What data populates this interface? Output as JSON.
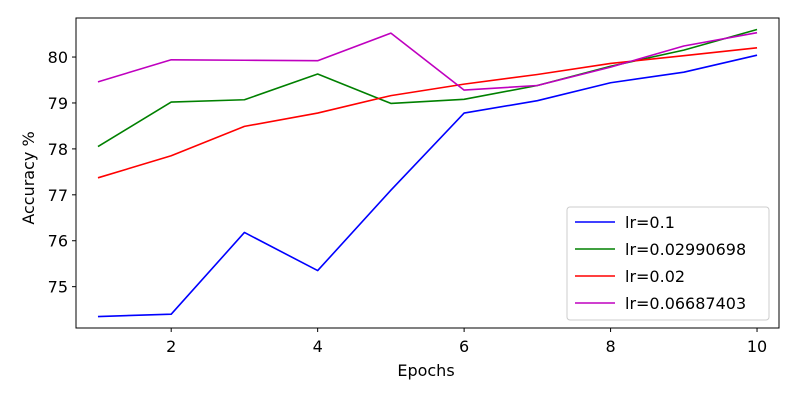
{
  "chart_data": {
    "type": "line",
    "title": "",
    "xlabel": "Epochs",
    "ylabel": "Accuracy %",
    "x": [
      1,
      2,
      3,
      4,
      5,
      6,
      7,
      8,
      9,
      10
    ],
    "xlim": [
      0.7,
      10.3
    ],
    "ylim": [
      74.1,
      80.85
    ],
    "xticks": [
      2,
      4,
      6,
      8,
      10
    ],
    "yticks": [
      75,
      76,
      77,
      78,
      79,
      80
    ],
    "grid": false,
    "legend_position": "lower-right",
    "series": [
      {
        "name": "lr=0.1",
        "color": "#0000ff",
        "values": [
          74.35,
          74.4,
          76.18,
          75.35,
          77.1,
          78.78,
          79.05,
          79.44,
          79.67,
          80.04
        ]
      },
      {
        "name": "lr=0.02990698",
        "color": "#008000",
        "values": [
          78.05,
          79.02,
          79.07,
          79.63,
          78.99,
          79.08,
          79.38,
          79.8,
          80.15,
          80.6
        ]
      },
      {
        "name": "lr=0.02",
        "color": "#ff0000",
        "values": [
          77.37,
          77.85,
          78.49,
          78.78,
          79.16,
          79.41,
          79.62,
          79.86,
          80.03,
          80.2
        ]
      },
      {
        "name": "lr=0.06687403",
        "color": "#bf00bf",
        "values": [
          79.46,
          79.94,
          79.93,
          79.92,
          80.52,
          79.28,
          79.38,
          79.78,
          80.24,
          80.53
        ]
      }
    ]
  }
}
